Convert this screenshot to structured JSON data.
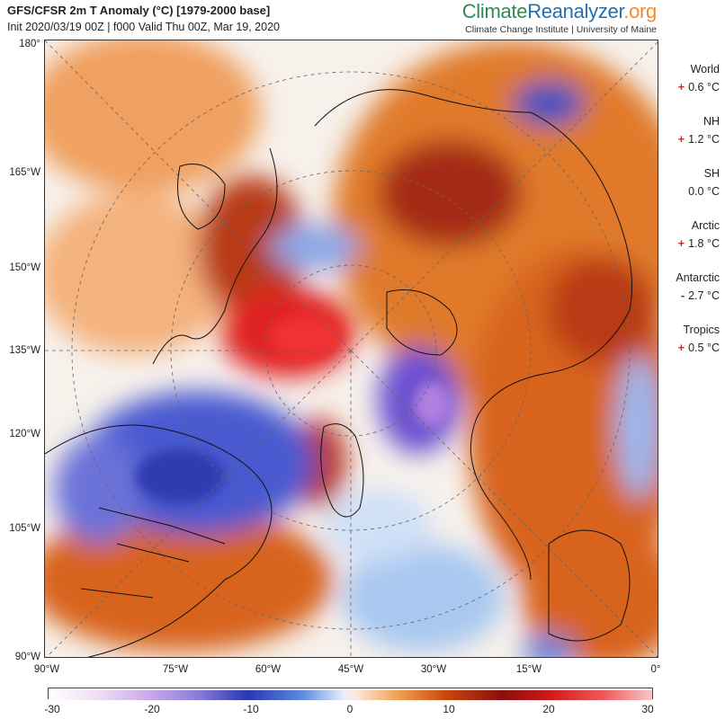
{
  "header": {
    "title": "GFS/CFSR 2m T Anomaly (°C) [1979-2000 base]",
    "subtitle": "Init 2020/03/19 00Z | f000 Valid Thu 00Z, Mar 19, 2020",
    "brand_part1": "Climate",
    "brand_part2": "Reanalyzer",
    "brand_part3": ".org",
    "brand_sub": "Climate Change Institute | University of Maine"
  },
  "map": {
    "y_labels": [
      "180°",
      "165°W",
      "150°W",
      "135°W",
      "120°W",
      "105°W",
      "90°W"
    ],
    "x_labels": [
      "90°W",
      "75°W",
      "60°W",
      "45°W",
      "30°W",
      "15°W",
      "0°"
    ]
  },
  "stats": [
    {
      "name": "World",
      "sign": "+",
      "value": "0.6 °C"
    },
    {
      "name": "NH",
      "sign": "+",
      "value": "1.2 °C"
    },
    {
      "name": "SH",
      "sign": "",
      "value": "0.0 °C"
    },
    {
      "name": "Arctic",
      "sign": "+",
      "value": "1.8 °C"
    },
    {
      "name": "Antarctic",
      "sign": "-",
      "value": "2.7 °C"
    },
    {
      "name": "Tropics",
      "sign": "+",
      "value": "0.5 °C"
    }
  ],
  "colorbar": {
    "labels": [
      "-30",
      "-20",
      "-10",
      "0",
      "10",
      "20",
      "30"
    ],
    "min": -30,
    "max": 30
  },
  "colors": {
    "positive_sign": "#d62728",
    "negative_sign": "#1f3fb2",
    "ocean_neutral": "#f5f5f5"
  }
}
